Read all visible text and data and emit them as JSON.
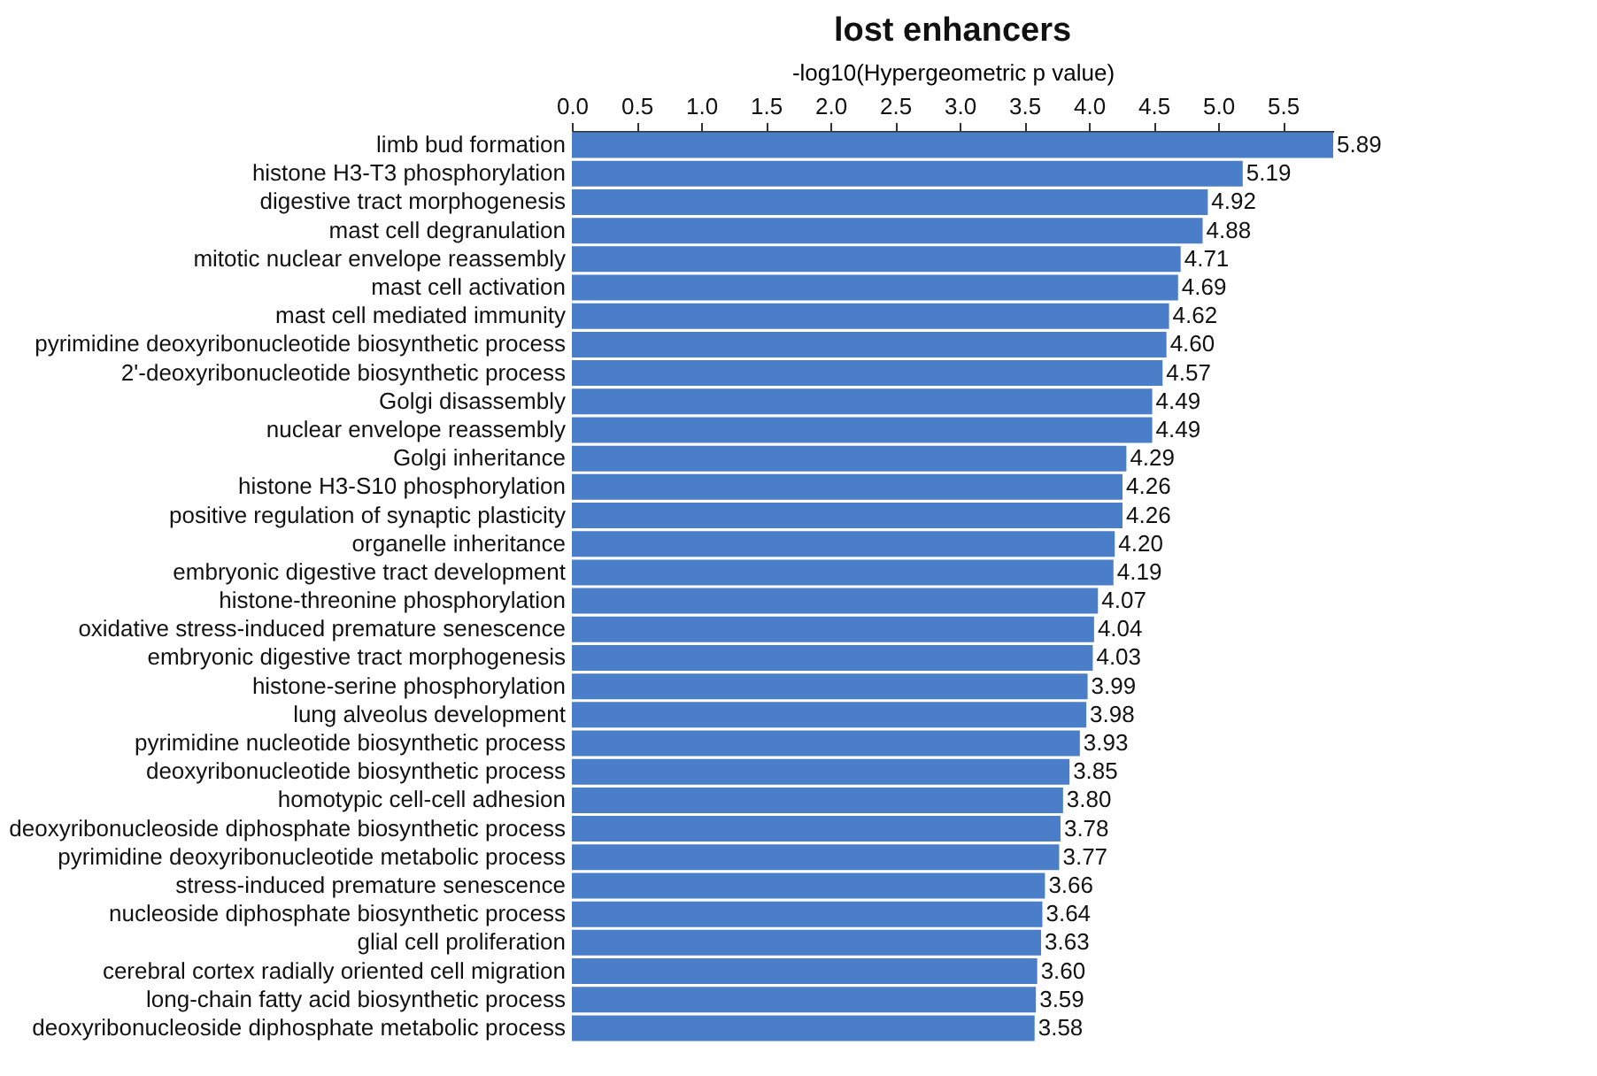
{
  "chart_data": {
    "type": "bar",
    "orientation": "horizontal",
    "title": "lost enhancers",
    "xlabel": "-log10(Hypergeometric p value)",
    "categories": [
      "limb bud formation",
      "histone H3-T3 phosphorylation",
      "digestive tract morphogenesis",
      "mast cell degranulation",
      "mitotic nuclear envelope reassembly",
      "mast cell activation",
      "mast cell mediated immunity",
      "pyrimidine deoxyribonucleotide biosynthetic process",
      "2'-deoxyribonucleotide biosynthetic process",
      "Golgi disassembly",
      "nuclear envelope reassembly",
      "Golgi inheritance",
      "histone H3-S10 phosphorylation",
      "positive regulation of synaptic plasticity",
      "organelle inheritance",
      "embryonic digestive tract development",
      "histone-threonine phosphorylation",
      "oxidative stress-induced premature senescence",
      "embryonic digestive tract morphogenesis",
      "histone-serine phosphorylation",
      "lung alveolus development",
      "pyrimidine nucleotide biosynthetic process",
      "deoxyribonucleotide biosynthetic process",
      "homotypic cell-cell adhesion",
      "deoxyribonucleoside diphosphate biosynthetic process",
      "pyrimidine deoxyribonucleotide metabolic process",
      "stress-induced premature senescence",
      "nucleoside diphosphate biosynthetic process",
      "glial cell proliferation",
      "cerebral cortex radially oriented cell migration",
      "long-chain fatty acid biosynthetic process",
      "deoxyribonucleoside diphosphate metabolic process"
    ],
    "values": [
      5.89,
      5.19,
      4.92,
      4.88,
      4.71,
      4.69,
      4.62,
      4.6,
      4.57,
      4.49,
      4.49,
      4.29,
      4.26,
      4.26,
      4.2,
      4.19,
      4.07,
      4.04,
      4.03,
      3.99,
      3.98,
      3.93,
      3.85,
      3.8,
      3.78,
      3.77,
      3.66,
      3.64,
      3.63,
      3.6,
      3.59,
      3.58
    ],
    "value_labels": [
      "5.89",
      "5.19",
      "4.92",
      "4.88",
      "4.71",
      "4.69",
      "4.62",
      "4.60",
      "4.57",
      "4.49",
      "4.49",
      "4.29",
      "4.26",
      "4.26",
      "4.20",
      "4.19",
      "4.07",
      "4.04",
      "4.03",
      "3.99",
      "3.98",
      "3.93",
      "3.85",
      "3.80",
      "3.78",
      "3.77",
      "3.66",
      "3.64",
      "3.63",
      "3.60",
      "3.59",
      "3.58"
    ],
    "color": "#4a7ec8",
    "xlim": [
      0,
      5.89
    ],
    "xticks": [
      {
        "value": 0,
        "label": "0.0"
      },
      {
        "value": 0.5,
        "label": "0.5"
      },
      {
        "value": 1,
        "label": "1.0"
      },
      {
        "value": 1.5,
        "label": "1.5"
      },
      {
        "value": 2,
        "label": "2.0"
      },
      {
        "value": 2.5,
        "label": "2.5"
      },
      {
        "value": 3,
        "label": "3.0"
      },
      {
        "value": 3.5,
        "label": "3.5"
      },
      {
        "value": 4,
        "label": "4.0"
      },
      {
        "value": 4.5,
        "label": "4.5"
      },
      {
        "value": 5,
        "label": "5.0"
      },
      {
        "value": 5.5,
        "label": "5.5"
      }
    ],
    "grid": false
  }
}
